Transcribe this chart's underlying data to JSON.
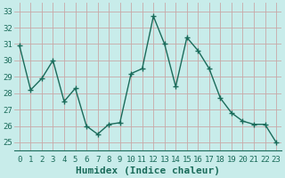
{
  "x": [
    0,
    1,
    2,
    3,
    4,
    5,
    6,
    7,
    8,
    9,
    10,
    11,
    12,
    13,
    14,
    15,
    16,
    17,
    18,
    19,
    20,
    21,
    22,
    23
  ],
  "y": [
    30.9,
    28.2,
    28.9,
    30.0,
    27.5,
    28.3,
    26.0,
    25.5,
    26.1,
    26.2,
    29.2,
    29.5,
    32.7,
    31.0,
    28.4,
    31.4,
    30.6,
    29.5,
    27.7,
    26.8,
    26.3,
    26.1,
    26.1,
    25.0
  ],
  "line_color": "#1a6b5a",
  "marker": "+",
  "marker_size": 4,
  "marker_linewidth": 1.0,
  "background_color": "#c8ecea",
  "grid_color": "#c8a8a8",
  "tick_label_color": "#1a6b5a",
  "xlabel": "Humidex (Indice chaleur)",
  "xlabel_color": "#1a6b5a",
  "xlabel_fontsize": 8,
  "ylim": [
    24.5,
    33.5
  ],
  "yticks": [
    25,
    26,
    27,
    28,
    29,
    30,
    31,
    32,
    33
  ],
  "xticks": [
    0,
    1,
    2,
    3,
    4,
    5,
    6,
    7,
    8,
    9,
    10,
    11,
    12,
    13,
    14,
    15,
    16,
    17,
    18,
    19,
    20,
    21,
    22,
    23
  ],
  "tick_fontsize": 6.5,
  "line_width": 1.0,
  "spine_color": "#1a6b5a"
}
